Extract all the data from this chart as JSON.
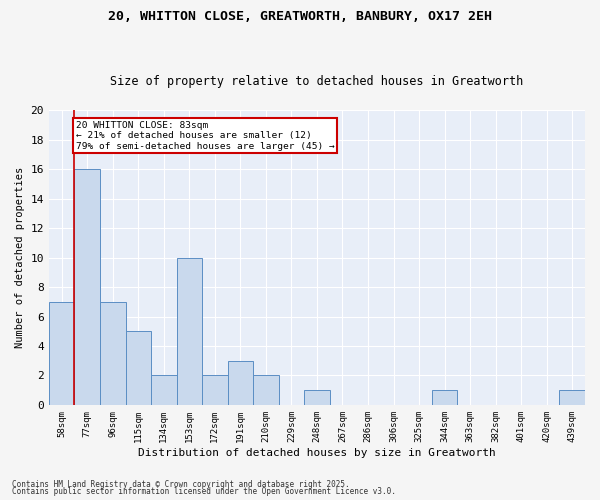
{
  "title_line1": "20, WHITTON CLOSE, GREATWORTH, BANBURY, OX17 2EH",
  "title_line2": "Size of property relative to detached houses in Greatworth",
  "xlabel": "Distribution of detached houses by size in Greatworth",
  "ylabel": "Number of detached properties",
  "categories": [
    "58sqm",
    "77sqm",
    "96sqm",
    "115sqm",
    "134sqm",
    "153sqm",
    "172sqm",
    "191sqm",
    "210sqm",
    "229sqm",
    "248sqm",
    "267sqm",
    "286sqm",
    "306sqm",
    "325sqm",
    "344sqm",
    "363sqm",
    "382sqm",
    "401sqm",
    "420sqm",
    "439sqm"
  ],
  "values": [
    7,
    16,
    7,
    5,
    2,
    10,
    2,
    3,
    2,
    0,
    1,
    0,
    0,
    0,
    0,
    1,
    0,
    0,
    0,
    0,
    1
  ],
  "bar_color": "#c9d9ed",
  "bar_edge_color": "#5b8ec4",
  "background_color": "#e8eef8",
  "grid_color": "#ffffff",
  "red_line_x": 0.5,
  "annotation_text": "20 WHITTON CLOSE: 83sqm\n← 21% of detached houses are smaller (12)\n79% of semi-detached houses are larger (45) →",
  "annotation_box_color": "#ffffff",
  "annotation_box_edge": "#cc0000",
  "footnote_line1": "Contains HM Land Registry data © Crown copyright and database right 2025.",
  "footnote_line2": "Contains public sector information licensed under the Open Government Licence v3.0.",
  "ylim": [
    0,
    20
  ],
  "yticks": [
    0,
    2,
    4,
    6,
    8,
    10,
    12,
    14,
    16,
    18,
    20
  ],
  "fig_bg": "#f5f5f5"
}
